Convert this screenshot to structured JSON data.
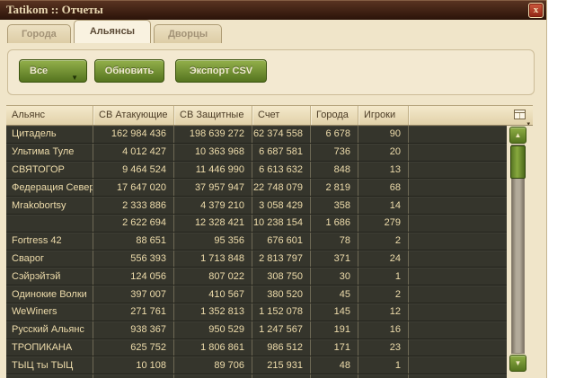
{
  "window": {
    "title": "Tatikom :: Отчеты"
  },
  "tabs": {
    "cities": "Города",
    "alliances": "Альянсы",
    "palaces": "Дворцы"
  },
  "toolbar": {
    "filter_selected": "Все",
    "refresh": "Обновить",
    "export_csv": "Экспорт CSV"
  },
  "table": {
    "columns": {
      "alliance": "Альянс",
      "attack": "СВ Атакующие",
      "defense": "СВ Защитные",
      "score": "Счет",
      "cities": "Города",
      "players": "Игроки"
    },
    "rows": [
      {
        "alliance": "Цитадель",
        "attack": "162 984 436",
        "defense": "198 639 272",
        "score": "62 374 558",
        "cities": "6 678",
        "players": "90"
      },
      {
        "alliance": "Ультима Туле",
        "attack": "4 012 427",
        "defense": "10 363 968",
        "score": "6 687 581",
        "cities": "736",
        "players": "20"
      },
      {
        "alliance": "СВЯТОГОР",
        "attack": "9 464 524",
        "defense": "11 446 990",
        "score": "6 613 632",
        "cities": "848",
        "players": "13"
      },
      {
        "alliance": "Федерация Севера",
        "attack": "17 647 020",
        "defense": "37 957 947",
        "score": "22 748 079",
        "cities": "2 819",
        "players": "68"
      },
      {
        "alliance": "Mrakobortsy",
        "attack": "2 333 886",
        "defense": "4 379 210",
        "score": "3 058 429",
        "cities": "358",
        "players": "14"
      },
      {
        "alliance": "",
        "attack": "2 622 694",
        "defense": "12 328 421",
        "score": "10 238 154",
        "cities": "1 686",
        "players": "279"
      },
      {
        "alliance": "Fortress 42",
        "attack": "88 651",
        "defense": "95 356",
        "score": "676 601",
        "cities": "78",
        "players": "2"
      },
      {
        "alliance": "Сварог",
        "attack": "556 393",
        "defense": "1 713 848",
        "score": "2 813 797",
        "cities": "371",
        "players": "24"
      },
      {
        "alliance": "Сэйрэйтэй",
        "attack": "124 056",
        "defense": "807 022",
        "score": "308 750",
        "cities": "30",
        "players": "1"
      },
      {
        "alliance": "Одинокие Волки",
        "attack": "397 007",
        "defense": "410 567",
        "score": "380 520",
        "cities": "45",
        "players": "2"
      },
      {
        "alliance": "WeWiners",
        "attack": "271 761",
        "defense": "1 352 813",
        "score": "1 152 078",
        "cities": "145",
        "players": "12"
      },
      {
        "alliance": "Русский Альянс",
        "attack": "938 367",
        "defense": "950 529",
        "score": "1 247 567",
        "cities": "191",
        "players": "16"
      },
      {
        "alliance": "ТРОПИКАНА",
        "attack": "625 752",
        "defense": "1 806 861",
        "score": "986 512",
        "cities": "171",
        "players": "23"
      },
      {
        "alliance": "ТЫЦ ты ТЫЦ",
        "attack": "10 108",
        "defense": "89 706",
        "score": "215 931",
        "cities": "48",
        "players": "1"
      }
    ]
  },
  "icons": {
    "close_glyph": "x",
    "caret_down_glyph": "▼",
    "scroll_up_glyph": "▲",
    "scroll_down_glyph": "▼",
    "column_picker_caret_glyph": "▾"
  },
  "colors": {
    "titlebar_brown": "#3c1e0f",
    "window_beige": "#f0e5c9",
    "button_green": "#6d8c2e",
    "close_red": "#a93620",
    "header_beige": "#ecdfbd",
    "row_dark": "#35352c",
    "row_text": "#eedcab"
  }
}
